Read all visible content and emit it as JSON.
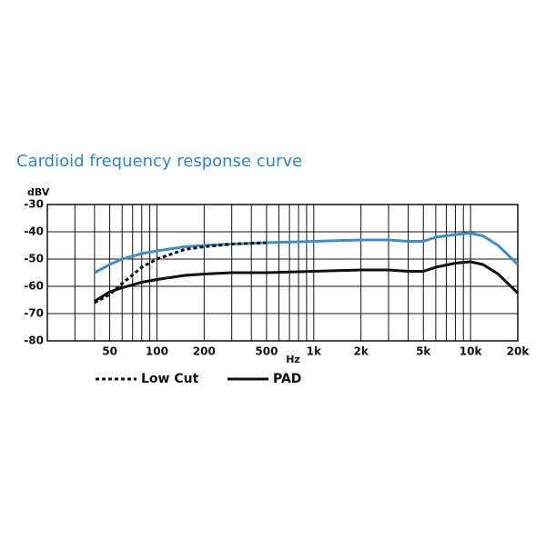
{
  "chart_data": {
    "type": "line",
    "title": "Cardioid frequency response curve",
    "y_label": "dBV",
    "x_label": "Hz",
    "log_x": true,
    "xlim": [
      20,
      20000
    ],
    "ylim": [
      -80,
      -30
    ],
    "yticks": [
      -30,
      -40,
      -50,
      -60,
      -70,
      -80
    ],
    "xticks": [
      50,
      100,
      200,
      500,
      {
        "value": 1000,
        "label": "1k"
      },
      {
        "value": 2000,
        "label": "2k"
      },
      {
        "value": 5000,
        "label": "5k"
      },
      {
        "value": 10000,
        "label": "10k"
      },
      {
        "value": 20000,
        "label": "20k"
      }
    ],
    "xminorticks": [
      30,
      40,
      60,
      70,
      80,
      90,
      300,
      400,
      600,
      700,
      800,
      900,
      3000,
      4000,
      6000,
      7000,
      8000,
      9000
    ],
    "grid": true,
    "x": [
      40,
      50,
      60,
      80,
      100,
      150,
      200,
      300,
      500,
      1000,
      2000,
      3000,
      4000,
      5000,
      6000,
      8000,
      10000,
      12000,
      15000,
      20000
    ],
    "series": [
      {
        "color": "#3a8fd0",
        "dash": "solid",
        "values": [
          -55,
          -52,
          -50,
          -48,
          -47,
          -45.5,
          -45,
          -44.5,
          -44,
          -43.5,
          -43,
          -43,
          -43.5,
          -43.5,
          -42,
          -41,
          -40.5,
          -41.5,
          -45,
          -52
        ]
      },
      {
        "name": "Low Cut",
        "color": "#111111",
        "dash": "dotted",
        "values": [
          -66,
          -63,
          -59,
          -53,
          -50,
          -46.5,
          -45.5,
          -44.5,
          -44,
          null,
          null,
          null,
          null,
          null,
          null,
          null,
          null,
          null,
          null,
          null
        ]
      },
      {
        "name": "PAD",
        "color": "#111111",
        "dash": "solid",
        "values": [
          -65.5,
          -62,
          -60.5,
          -58.5,
          -57.5,
          -56,
          -55.5,
          -55,
          -55,
          -54.5,
          -54,
          -54,
          -54.5,
          -54.5,
          -53,
          -51.5,
          -51,
          -52,
          -55.5,
          -62.5
        ]
      }
    ]
  }
}
